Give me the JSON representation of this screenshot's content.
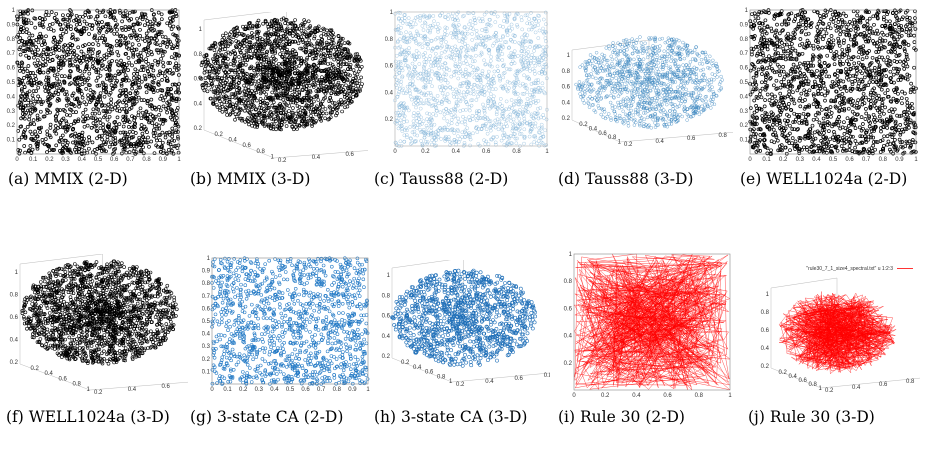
{
  "figure": {
    "panels": [
      {
        "id": "a",
        "caption": "(a) MMIX (2-D)",
        "kind": "2d",
        "color": "#000000",
        "marker": "ring"
      },
      {
        "id": "b",
        "caption": "(b) MMIX (3-D)",
        "kind": "3d",
        "color": "#000000",
        "marker": "ring"
      },
      {
        "id": "c",
        "caption": "(c) Tauss88 (2-D)",
        "kind": "2d",
        "color": "#7fb2d6",
        "marker": "ring"
      },
      {
        "id": "d",
        "caption": "(d) Tauss88 (3-D)",
        "kind": "3d",
        "color": "#3b86bf",
        "marker": "ring"
      },
      {
        "id": "e",
        "caption": "(e) WELL1024a (2-D)",
        "kind": "2d",
        "color": "#000000",
        "marker": "ring"
      },
      {
        "id": "f",
        "caption": "(f) WELL1024a (3-D)",
        "kind": "3d",
        "color": "#000000",
        "marker": "ring"
      },
      {
        "id": "g",
        "caption": "(g) 3-state CA (2-D)",
        "kind": "2d",
        "color": "#1f77c4",
        "marker": "ring"
      },
      {
        "id": "h",
        "caption": "(h) 3-state CA (3-D)",
        "kind": "3d",
        "color": "#1f6fb8",
        "marker": "ring"
      },
      {
        "id": "i",
        "caption": "(i) Rule 30 (2-D)",
        "kind": "2d",
        "color": "#ff0000",
        "marker": "line"
      },
      {
        "id": "j",
        "caption": "(j) Rule 30 (3-D)",
        "kind": "3d",
        "color": "#ff0000",
        "marker": "line",
        "legend": "\"rule30_7_1_size4_spectral.txt\" u 1:2:3"
      }
    ],
    "axis_ticks_2d": [
      "0",
      "0.1",
      "0.2",
      "0.3",
      "0.4",
      "0.5",
      "0.6",
      "0.7",
      "0.8",
      "0.9",
      "1"
    ],
    "axis_ticks_2d_coarse": [
      "0",
      "0.2",
      "0.4",
      "0.6",
      "0.8",
      "1"
    ],
    "axis_ticks_3d": [
      "0.2",
      "0.4",
      "0.6",
      "0.8",
      "1"
    ]
  }
}
